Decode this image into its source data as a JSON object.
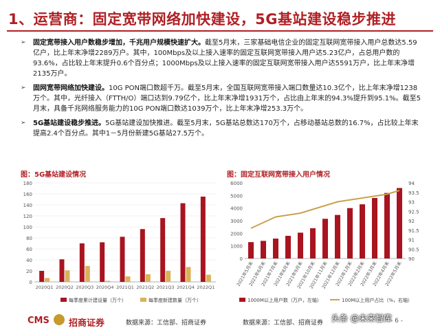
{
  "title": "1、运营商：固定宽带网络加快建设，5G基站建设稳步推进",
  "bullets": [
    {
      "lead": "固定宽带接入用户数稳步增加，千兆用户规模快速扩大。",
      "text": "截至5月末，三家基础电信企业的固定互联网宽带接入用户总数达5.59亿户，比上年末净增2289万户。其中，100Mbps及以上接入速率的固定互联网宽带接入用户达5.23亿户，占总用户数的93.6%，占比较上年末提升0.6个百分点；1000Mbps及以上接入速率的固定互联网宽带接入用户达5591万户，比上年末净增2135万户。"
    },
    {
      "lead": "固网宽带网络加快建设。",
      "text": "10G PON端口数超千万。截至5月末，全国互联网宽带接入端口数量达10.3亿个，比上年末净增1238万个。其中，光纤接入（FTTH/O）端口达到9.79亿个，比上年末净增1931万个，占比由上年末的94.3%提升到95.1%。截至5月末，具备千兆网络服务能力的10G PON端口数达1039万个，比上年末净增253.3万个。"
    },
    {
      "lead": "5G基站建设稳步推进。",
      "text": "5G基站建设加快推进。截至5月末，5G基站总数达170万个，占移动基站总数的16.7%，占比较上年末提高2.4个百分点。其中1－5月份新建5G基站27.5万个。"
    }
  ],
  "fig1": {
    "title": "图：5G基站建设情况",
    "legend": [
      "每季度累计建设量（万个）",
      "每季度新建数量（万个）"
    ]
  },
  "fig2": {
    "title": "图：固定互联网宽带接入用户情况",
    "legend": [
      "1000M以上用户数（万户，左轴）",
      "100M以上用户占比（%，右轴）"
    ]
  },
  "colors": {
    "accent": "#b01f24",
    "bar_red": "#a8141f",
    "bar_gold": "#d9b25a",
    "line_gold": "#c9a24a"
  },
  "chart_data": [
    {
      "type": "bar",
      "categories": [
        "2020Q1",
        "2020Q2",
        "2020Q3",
        "2020Q4",
        "2021Q1",
        "2021Q2",
        "2021Q3",
        "2021Q4",
        "2022Q1"
      ],
      "series": [
        {
          "name": "每季度累计建设量（万个）",
          "values": [
            20,
            41,
            70,
            72,
            82,
            96,
            116,
            143,
            155
          ]
        },
        {
          "name": "每季度新建数量（万个）",
          "values": [
            7,
            21,
            29,
            2,
            10,
            14,
            20,
            27,
            13
          ]
        }
      ],
      "yticks": [
        0,
        20,
        40,
        60,
        80,
        100,
        120,
        140,
        160,
        180
      ],
      "ylim": [
        0,
        180
      ]
    },
    {
      "type": "bar",
      "categories": [
        "2021年5月末",
        "2021年6月末",
        "2021年7月末",
        "2021年8月末",
        "2021年9月末",
        "2021年10月末",
        "2021年11月末",
        "2021年12月末",
        "2022年1月末",
        "2022年2月末",
        "2022年3月末",
        "2022年4月末",
        "2022年5月末"
      ],
      "series": [
        {
          "name": "1000M以上用户数（万户，左轴）",
          "type": "bar",
          "axis": "left",
          "values": [
            1300,
            1400,
            1580,
            1800,
            2050,
            2400,
            3150,
            3456,
            4000,
            4300,
            4800,
            5200,
            5591
          ]
        },
        {
          "name": "100M以上用户占比（%，右轴）",
          "type": "line",
          "axis": "right",
          "values": [
            91.6,
            91.9,
            92.2,
            92.3,
            92.4,
            92.6,
            92.8,
            93.0,
            93.1,
            93.2,
            93.3,
            93.4,
            93.6
          ]
        }
      ],
      "yticks_left": [
        0,
        1000,
        2000,
        3000,
        4000,
        5000,
        6000
      ],
      "ylim_left": [
        0,
        6000
      ],
      "yticks_right": [
        "90",
        "90.5",
        "91",
        "91.5",
        "92",
        "92.5",
        "93",
        "93.5",
        "94"
      ],
      "ylim_right": [
        90,
        94
      ]
    }
  ],
  "footer": {
    "logo": "CMS",
    "logo_cn": "招商证券",
    "source1": "数据来源：工信部、招商证券",
    "source2": "数据来源：工信部、招商证券",
    "page": "- 6 -",
    "watermark": "头条 @未来智库"
  }
}
